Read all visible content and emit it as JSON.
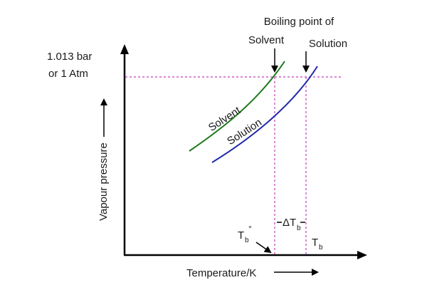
{
  "labels": {
    "boiling_point_of": "Boiling point of",
    "solvent_top": "Solvent",
    "solution_top": "Solution",
    "pressure_line1": "1.013 bar",
    "pressure_line2": "or 1 Atm",
    "curve_solvent": "Solvent",
    "curve_solution": "Solution",
    "y_axis": "Vapour pressure",
    "x_axis": "Temperature/K",
    "delta": "ΔT",
    "delta_sub": "b",
    "tb0_main": "T",
    "tb0_sub": "b",
    "tb0_sup": "°",
    "tb_main": "T",
    "tb_sub": "b"
  },
  "colors": {
    "axis": "#000000",
    "solvent_curve": "#1f7a1f",
    "solution_curve": "#1f2aa8",
    "guide_lines": "#c03cc0",
    "text": "#1a1a1a"
  },
  "icons": [
    "y-axis-arrow-icon",
    "x-axis-arrow-icon",
    "pointer-arrow-icon"
  ]
}
